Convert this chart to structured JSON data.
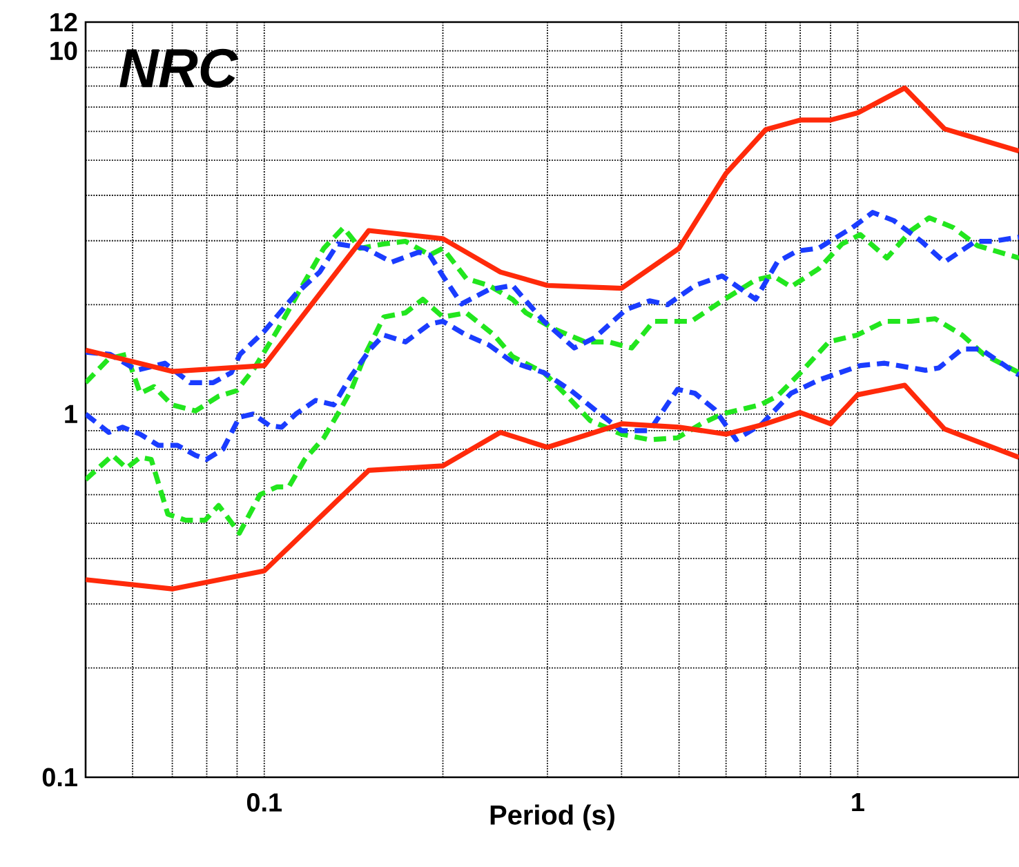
{
  "chart_data": {
    "type": "line",
    "xlabel": "Period (s)",
    "annotations": [
      "NRC"
    ],
    "log": "xy",
    "grid": true,
    "xlim": [
      0.05,
      1.87
    ],
    "ylim": [
      0.1,
      12
    ],
    "xticks": [
      0.1,
      1
    ],
    "yticks": [
      0.1,
      1,
      10,
      12
    ],
    "series": [
      {
        "color": "#22e61e",
        "line_style": "dashed",
        "x": [
          0.05,
          0.0547,
          0.0586,
          0.0618,
          0.0652,
          0.0699,
          0.0766,
          0.0838,
          0.0899,
          0.0963,
          0.105,
          0.116,
          0.126,
          0.136,
          0.145,
          0.159,
          0.173,
          0.19,
          0.2,
          0.219,
          0.239,
          0.262,
          0.276,
          0.307,
          0.347,
          0.38,
          0.416,
          0.453,
          0.524,
          0.591,
          0.673,
          0.721,
          0.772,
          0.859,
          0.941,
          1.01,
          1.12,
          1.23,
          1.32,
          1.45,
          1.59,
          1.87
        ],
        "values": [
          1.22,
          1.42,
          1.46,
          1.14,
          1.19,
          1.06,
          1.02,
          1.12,
          1.16,
          1.34,
          1.69,
          2.26,
          2.86,
          3.26,
          2.86,
          2.94,
          2.99,
          2.74,
          2.86,
          2.36,
          2.26,
          2.07,
          1.9,
          1.72,
          1.58,
          1.58,
          1.52,
          1.8,
          1.8,
          2.05,
          2.34,
          2.4,
          2.24,
          2.51,
          2.94,
          3.12,
          2.69,
          3.2,
          3.47,
          3.26,
          2.91,
          2.69
        ]
      },
      {
        "color": "#22e61e",
        "line_style": "dashed",
        "x": [
          0.05,
          0.0555,
          0.0586,
          0.0618,
          0.0645,
          0.0688,
          0.0737,
          0.0795,
          0.0838,
          0.0908,
          0.0984,
          0.105,
          0.11,
          0.117,
          0.126,
          0.133,
          0.14,
          0.148,
          0.159,
          0.173,
          0.185,
          0.2,
          0.219,
          0.244,
          0.262,
          0.296,
          0.324,
          0.354,
          0.4,
          0.446,
          0.497,
          0.545,
          0.591,
          0.685,
          0.732,
          0.801,
          0.894,
          0.998,
          1.11,
          1.23,
          1.35,
          1.5,
          1.63,
          1.87
        ],
        "values": [
          0.66,
          0.77,
          0.71,
          0.76,
          0.75,
          0.53,
          0.51,
          0.51,
          0.56,
          0.47,
          0.6,
          0.63,
          0.63,
          0.75,
          0.86,
          1.0,
          1.16,
          1.46,
          1.85,
          1.9,
          2.07,
          1.85,
          1.9,
          1.65,
          1.44,
          1.3,
          1.12,
          0.96,
          0.88,
          0.85,
          0.86,
          0.94,
          1.0,
          1.06,
          1.12,
          1.3,
          1.58,
          1.65,
          1.8,
          1.8,
          1.83,
          1.65,
          1.46,
          1.3
        ]
      },
      {
        "color": "#1a3cff",
        "line_style": "dashed",
        "x": [
          0.05,
          0.055,
          0.061,
          0.068,
          0.075,
          0.082,
          0.088,
          0.091,
          0.1,
          0.113,
          0.124,
          0.133,
          0.148,
          0.164,
          0.182,
          0.19,
          0.2,
          0.215,
          0.239,
          0.262,
          0.296,
          0.333,
          0.36,
          0.407,
          0.446,
          0.478,
          0.532,
          0.591,
          0.673,
          0.732,
          0.79,
          0.859,
          0.979,
          1.06,
          1.15,
          1.28,
          1.4,
          1.58,
          1.69,
          1.87
        ],
        "values": [
          1.48,
          1.46,
          1.32,
          1.38,
          1.22,
          1.22,
          1.3,
          1.46,
          1.69,
          2.14,
          2.46,
          2.94,
          2.86,
          2.62,
          2.79,
          2.74,
          2.4,
          2.01,
          2.2,
          2.26,
          1.8,
          1.52,
          1.62,
          1.94,
          2.05,
          2.0,
          2.26,
          2.4,
          2.07,
          2.62,
          2.81,
          2.86,
          3.26,
          3.59,
          3.41,
          2.99,
          2.62,
          2.99,
          2.99,
          3.07
        ]
      },
      {
        "color": "#1a3cff",
        "line_style": "dashed",
        "x": [
          0.05,
          0.0547,
          0.0577,
          0.0618,
          0.0663,
          0.0714,
          0.0766,
          0.0799,
          0.0852,
          0.0908,
          0.0958,
          0.102,
          0.107,
          0.113,
          0.122,
          0.131,
          0.14,
          0.151,
          0.159,
          0.173,
          0.19,
          0.2,
          0.219,
          0.239,
          0.262,
          0.296,
          0.329,
          0.36,
          0.4,
          0.446,
          0.497,
          0.532,
          0.574,
          0.624,
          0.69,
          0.772,
          0.859,
          1.01,
          1.11,
          1.3,
          1.37,
          1.5,
          1.61,
          1.87
        ],
        "values": [
          1.0,
          0.89,
          0.92,
          0.88,
          0.82,
          0.82,
          0.77,
          0.75,
          0.8,
          0.98,
          1.0,
          0.93,
          0.92,
          1.0,
          1.09,
          1.06,
          1.27,
          1.51,
          1.65,
          1.58,
          1.77,
          1.8,
          1.65,
          1.55,
          1.39,
          1.3,
          1.16,
          1.03,
          0.9,
          0.9,
          1.17,
          1.14,
          1.03,
          0.85,
          0.94,
          1.14,
          1.24,
          1.36,
          1.38,
          1.32,
          1.34,
          1.51,
          1.51,
          1.28
        ]
      },
      {
        "color": "#ff2a0a",
        "line_style": "solid",
        "x": [
          0.05,
          0.07,
          0.1,
          0.15,
          0.2,
          0.25,
          0.3,
          0.4,
          0.5,
          0.6,
          0.7,
          0.8,
          0.9,
          1.0,
          1.2,
          1.4,
          1.87
        ],
        "values": [
          1.5,
          1.31,
          1.36,
          3.2,
          3.04,
          2.46,
          2.26,
          2.22,
          2.86,
          4.6,
          6.07,
          6.45,
          6.45,
          6.75,
          7.9,
          6.1,
          5.3
        ]
      },
      {
        "color": "#ff2a0a",
        "line_style": "solid",
        "x": [
          0.05,
          0.07,
          0.1,
          0.15,
          0.2,
          0.25,
          0.3,
          0.4,
          0.5,
          0.6,
          0.7,
          0.8,
          0.9,
          1.0,
          1.2,
          1.4,
          1.87
        ],
        "values": [
          0.35,
          0.33,
          0.37,
          0.7,
          0.72,
          0.89,
          0.81,
          0.94,
          0.92,
          0.88,
          0.94,
          1.01,
          0.94,
          1.13,
          1.2,
          0.91,
          0.76
        ]
      }
    ]
  }
}
